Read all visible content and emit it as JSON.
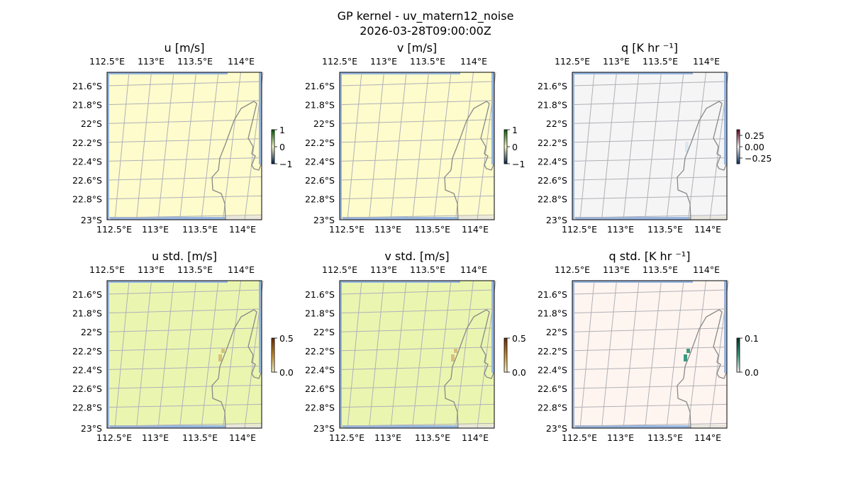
{
  "figure": {
    "title": "GP kernel - uv_matern12_noise",
    "subtitle": "2026-03-28T09:00:00Z"
  },
  "lon_ticks": [
    "112.5°E",
    "113°E",
    "113.5°E",
    "114°E"
  ],
  "lat_ticks": [
    "21.6°S",
    "21.8°S",
    "22°S",
    "22.2°S",
    "22.4°S",
    "22.6°S",
    "22.8°S",
    "23°S"
  ],
  "colors": {
    "ocean": "#97b6e1",
    "land_outside": "#e8e6dc",
    "coastline": "#888888",
    "grid": "#b0b0b8"
  },
  "panels": [
    {
      "title": "u [m/s]",
      "fill": "#fefccc",
      "cbar_ticks": [
        "1",
        "0",
        "−1"
      ],
      "cbar_colors": [
        "#00204c",
        "#fefccc",
        "#005a00"
      ],
      "patches": []
    },
    {
      "title": "v [m/s]",
      "fill": "#fefccc",
      "cbar_ticks": [
        "1",
        "0",
        "−1"
      ],
      "cbar_colors": [
        "#00204c",
        "#fefccc",
        "#005a00"
      ],
      "patches": []
    },
    {
      "title": "q [K hr ⁻¹]",
      "fill": "#f5f5f5",
      "cbar_ticks": [
        "0.25",
        "0.00",
        "−0.25"
      ],
      "cbar_colors": [
        "#053061",
        "#f7f7f7",
        "#67001f"
      ],
      "patches": [
        {
          "color": "#dce8f2"
        }
      ]
    },
    {
      "title": "u std. [m/s]",
      "fill": "#eaf6b0",
      "cbar_ticks": [
        "0.5",
        "0.0"
      ],
      "cbar_colors": [
        "#fff7d0",
        "#c89030",
        "#6a2a05"
      ],
      "patches": [
        {
          "color": "#d8c07a"
        }
      ]
    },
    {
      "title": "v std. [m/s]",
      "fill": "#eaf6b0",
      "cbar_ticks": [
        "0.5",
        "0.0"
      ],
      "cbar_colors": [
        "#fff7d0",
        "#c89030",
        "#6a2a05"
      ],
      "patches": [
        {
          "color": "#d8c07a"
        }
      ]
    },
    {
      "title": "q std. [K hr ⁻¹]",
      "fill": "#fff5f0",
      "cbar_ticks": [
        "0.1",
        "0.0"
      ],
      "cbar_colors": [
        "#fff5f0",
        "#3c9a80",
        "#00352a"
      ],
      "patches": [
        {
          "color": "#3c9a80"
        }
      ]
    }
  ]
}
